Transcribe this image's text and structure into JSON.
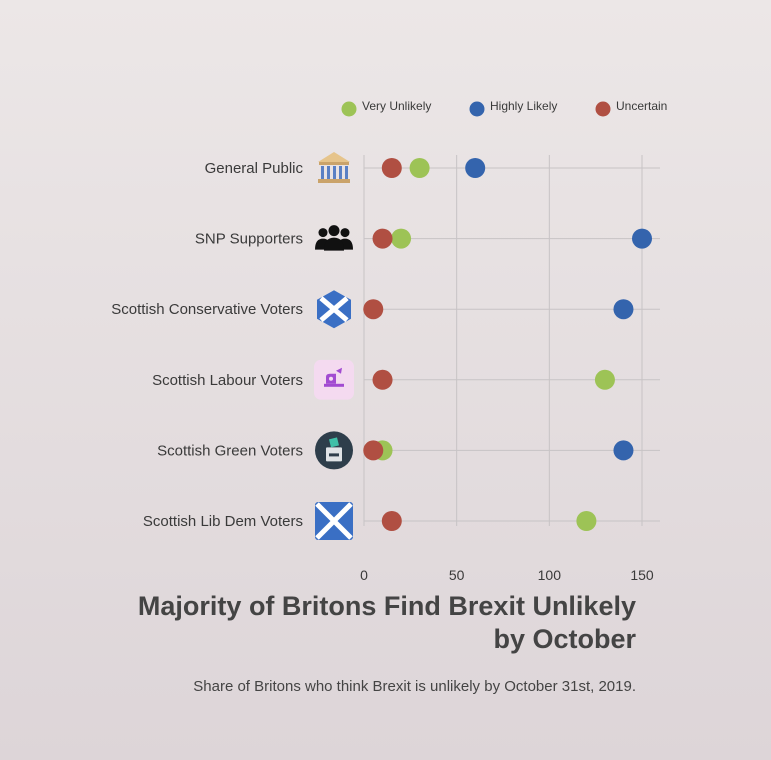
{
  "chart_data": {
    "type": "scatter",
    "title": "Majority of Britons Find Brexit Unlikely by October",
    "subtitle": "Share of Britons who think Brexit is unlikely by October 31st, 2019.",
    "categories": [
      "General Public",
      "SNP Supporters",
      "Scottish Conservative Voters",
      "Scottish Labour Voters",
      "Scottish Green Voters",
      "Scottish Lib Dem Voters"
    ],
    "category_icons": [
      "parliament-icon",
      "people-group-icon",
      "saltire-icon",
      "labour-rose-icon",
      "ballot-box-icon",
      "saltire-flag-icon"
    ],
    "series": [
      {
        "name": "Very Unlikely",
        "color": "#9dc356",
        "values": [
          30,
          20,
          null,
          130,
          10,
          120
        ]
      },
      {
        "name": "Highly Likely",
        "color": "#3464ad",
        "values": [
          60,
          150,
          140,
          null,
          140,
          null
        ]
      },
      {
        "name": "Uncertain",
        "color": "#b04f42",
        "values": [
          15,
          10,
          5,
          10,
          5,
          15
        ]
      }
    ],
    "x_ticks": [
      0,
      50,
      100,
      150
    ],
    "xlim": [
      0,
      160
    ],
    "xlabel": "",
    "ylabel": "",
    "grid": true,
    "legend_position": "top-right"
  }
}
